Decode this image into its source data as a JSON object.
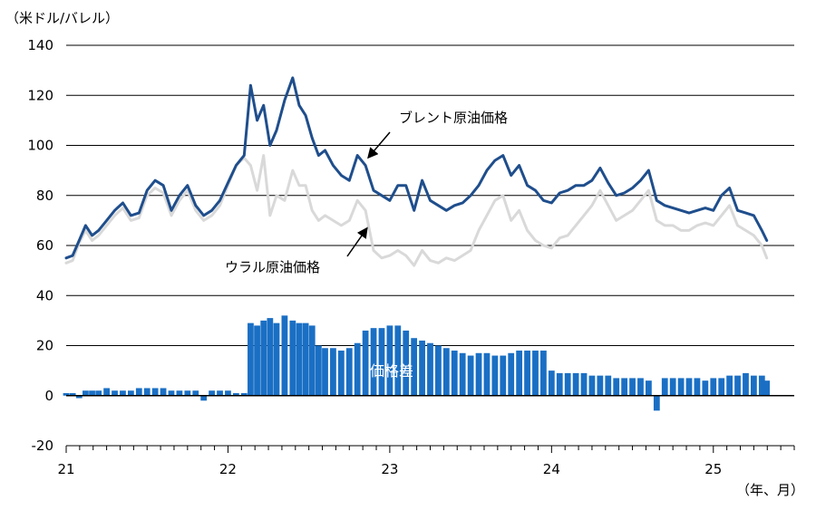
{
  "chart_data": {
    "type": "line",
    "ylabel": "（米ドル/バレル）",
    "xlabel": "（年、月）",
    "ylim": [
      -20,
      140
    ],
    "yticks": [
      -20,
      0,
      20,
      40,
      60,
      80,
      100,
      120,
      140
    ],
    "xlim": [
      2021.0,
      2025.5
    ],
    "xticks": [
      {
        "value": 2021,
        "label": "21"
      },
      {
        "value": 2022,
        "label": "22"
      },
      {
        "value": 2023,
        "label": "23"
      },
      {
        "value": 2024,
        "label": "24"
      },
      {
        "value": 2025,
        "label": "25"
      }
    ],
    "grid": true,
    "series": [
      {
        "name": "ブレント原油価格",
        "style": "line",
        "color": "#1f4e8c",
        "x": [
          2021.0,
          2021.04,
          2021.08,
          2021.12,
          2021.16,
          2021.2,
          2021.25,
          2021.3,
          2021.35,
          2021.4,
          2021.45,
          2021.5,
          2021.55,
          2021.6,
          2021.65,
          2021.7,
          2021.75,
          2021.8,
          2021.85,
          2021.9,
          2021.95,
          2022.0,
          2022.05,
          2022.1,
          2022.14,
          2022.18,
          2022.22,
          2022.26,
          2022.3,
          2022.35,
          2022.4,
          2022.44,
          2022.48,
          2022.52,
          2022.56,
          2022.6,
          2022.65,
          2022.7,
          2022.75,
          2022.8,
          2022.85,
          2022.9,
          2022.95,
          2023.0,
          2023.05,
          2023.1,
          2023.15,
          2023.2,
          2023.25,
          2023.3,
          2023.35,
          2023.4,
          2023.45,
          2023.5,
          2023.55,
          2023.6,
          2023.65,
          2023.7,
          2023.75,
          2023.8,
          2023.85,
          2023.9,
          2023.95,
          2024.0,
          2024.05,
          2024.1,
          2024.15,
          2024.2,
          2024.25,
          2024.3,
          2024.35,
          2024.4,
          2024.45,
          2024.5,
          2024.55,
          2024.6,
          2024.65,
          2024.7,
          2024.75,
          2024.8,
          2024.85,
          2024.9,
          2024.95,
          2025.0,
          2025.05,
          2025.1,
          2025.15,
          2025.2,
          2025.25,
          2025.3,
          2025.33
        ],
        "y": [
          55,
          56,
          62,
          68,
          64,
          66,
          70,
          74,
          77,
          72,
          73,
          82,
          86,
          84,
          74,
          80,
          84,
          76,
          72,
          74,
          78,
          85,
          92,
          96,
          124,
          110,
          116,
          100,
          106,
          118,
          127,
          116,
          112,
          103,
          96,
          98,
          92,
          88,
          86,
          96,
          92,
          82,
          80,
          78,
          84,
          84,
          74,
          86,
          78,
          76,
          74,
          76,
          77,
          80,
          84,
          90,
          94,
          96,
          88,
          92,
          84,
          82,
          78,
          77,
          81,
          82,
          84,
          84,
          86,
          91,
          85,
          80,
          81,
          83,
          86,
          90,
          78,
          76,
          75,
          74,
          73,
          74,
          75,
          74,
          80,
          83,
          74,
          73,
          72,
          66,
          62
        ]
      },
      {
        "name": "ウラル原油価格",
        "style": "line",
        "color": "#d9d9d9",
        "x": [
          2021.0,
          2021.04,
          2021.08,
          2021.12,
          2021.16,
          2021.2,
          2021.25,
          2021.3,
          2021.35,
          2021.4,
          2021.45,
          2021.5,
          2021.55,
          2021.6,
          2021.65,
          2021.7,
          2021.75,
          2021.8,
          2021.85,
          2021.9,
          2021.95,
          2022.0,
          2022.05,
          2022.1,
          2022.14,
          2022.18,
          2022.22,
          2022.26,
          2022.3,
          2022.35,
          2022.4,
          2022.44,
          2022.48,
          2022.52,
          2022.56,
          2022.6,
          2022.65,
          2022.7,
          2022.75,
          2022.8,
          2022.85,
          2022.9,
          2022.95,
          2023.0,
          2023.05,
          2023.1,
          2023.15,
          2023.2,
          2023.25,
          2023.3,
          2023.35,
          2023.4,
          2023.45,
          2023.5,
          2023.55,
          2023.6,
          2023.65,
          2023.7,
          2023.75,
          2023.8,
          2023.85,
          2023.9,
          2023.95,
          2024.0,
          2024.05,
          2024.1,
          2024.15,
          2024.2,
          2024.25,
          2024.3,
          2024.35,
          2024.4,
          2024.45,
          2024.5,
          2024.55,
          2024.6,
          2024.65,
          2024.7,
          2024.75,
          2024.8,
          2024.85,
          2024.9,
          2024.95,
          2025.0,
          2025.05,
          2025.1,
          2025.15,
          2025.2,
          2025.25,
          2025.3,
          2025.33
        ],
        "y": [
          53,
          54,
          61,
          66,
          62,
          64,
          68,
          72,
          75,
          70,
          71,
          80,
          83,
          81,
          72,
          78,
          82,
          74,
          70,
          72,
          76,
          84,
          92,
          95,
          92,
          82,
          96,
          72,
          80,
          78,
          90,
          84,
          84,
          74,
          70,
          72,
          70,
          68,
          70,
          78,
          74,
          58,
          55,
          56,
          58,
          56,
          52,
          58,
          54,
          53,
          55,
          54,
          56,
          58,
          66,
          72,
          78,
          80,
          70,
          74,
          66,
          62,
          60,
          59,
          63,
          64,
          68,
          72,
          76,
          82,
          76,
          70,
          72,
          74,
          78,
          82,
          70,
          68,
          68,
          66,
          66,
          68,
          69,
          68,
          72,
          76,
          68,
          66,
          64,
          60,
          55
        ]
      },
      {
        "name": "価格差",
        "style": "bar",
        "color": "#1a6fc4",
        "x": [
          2021.0,
          2021.04,
          2021.08,
          2021.12,
          2021.16,
          2021.2,
          2021.25,
          2021.3,
          2021.35,
          2021.4,
          2021.45,
          2021.5,
          2021.55,
          2021.6,
          2021.65,
          2021.7,
          2021.75,
          2021.8,
          2021.85,
          2021.9,
          2021.95,
          2022.0,
          2022.05,
          2022.1,
          2022.14,
          2022.18,
          2022.22,
          2022.26,
          2022.3,
          2022.35,
          2022.4,
          2022.44,
          2022.48,
          2022.52,
          2022.56,
          2022.6,
          2022.65,
          2022.7,
          2022.75,
          2022.8,
          2022.85,
          2022.9,
          2022.95,
          2023.0,
          2023.05,
          2023.1,
          2023.15,
          2023.2,
          2023.25,
          2023.3,
          2023.35,
          2023.4,
          2023.45,
          2023.5,
          2023.55,
          2023.6,
          2023.65,
          2023.7,
          2023.75,
          2023.8,
          2023.85,
          2023.9,
          2023.95,
          2024.0,
          2024.05,
          2024.1,
          2024.15,
          2024.2,
          2024.25,
          2024.3,
          2024.35,
          2024.4,
          2024.45,
          2024.5,
          2024.55,
          2024.6,
          2024.65,
          2024.7,
          2024.75,
          2024.8,
          2024.85,
          2024.9,
          2024.95,
          2025.0,
          2025.05,
          2025.1,
          2025.15,
          2025.2,
          2025.25,
          2025.3,
          2025.33
        ],
        "y": [
          1,
          1,
          -1,
          2,
          2,
          2,
          3,
          2,
          2,
          2,
          3,
          3,
          3,
          3,
          2,
          2,
          2,
          2,
          -2,
          2,
          2,
          2,
          1,
          1,
          29,
          28,
          30,
          31,
          29,
          32,
          30,
          29,
          29,
          28,
          20,
          19,
          19,
          18,
          19,
          21,
          26,
          27,
          27,
          28,
          28,
          26,
          23,
          22,
          21,
          20,
          19,
          18,
          17,
          16,
          17,
          17,
          16,
          16,
          17,
          18,
          18,
          18,
          18,
          10,
          9,
          9,
          9,
          9,
          8,
          8,
          8,
          7,
          7,
          7,
          7,
          6,
          -6,
          7,
          7,
          7,
          7,
          7,
          6,
          7,
          7,
          8,
          8,
          9,
          8,
          8,
          6
        ]
      }
    ],
    "annotations": [
      {
        "text": "ブレント原油価格",
        "series": "ブレント原油価格"
      },
      {
        "text": "ウラル原油価格",
        "series": "ウラル原油価格"
      },
      {
        "text": "価格差",
        "series": "価格差"
      }
    ]
  }
}
